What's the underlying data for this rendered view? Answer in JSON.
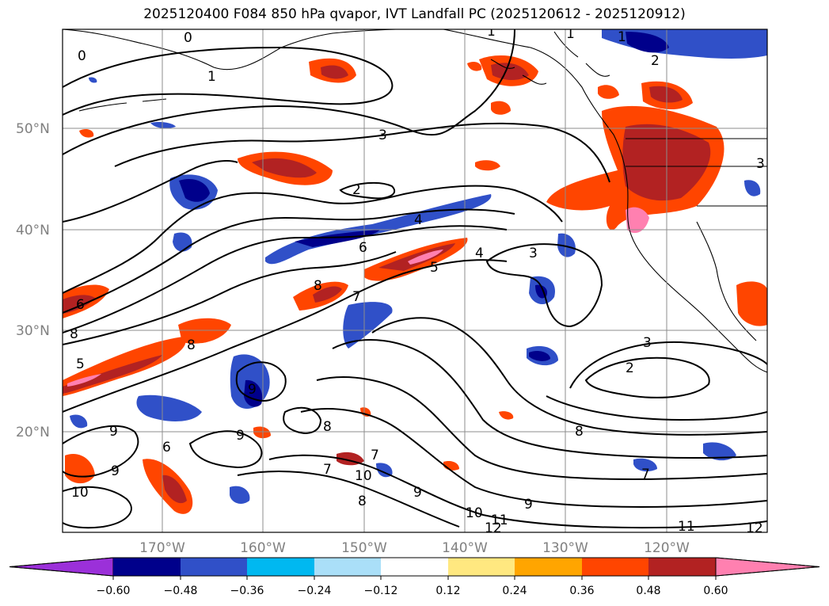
{
  "title": "2025120400 F084 850 hPa qvapor, IVT Landfall PC (2025120612 - 2025120912)",
  "lat_labels": [
    "50°N",
    "40°N",
    "30°N",
    "20°N"
  ],
  "lon_labels": [
    "170°W",
    "160°W",
    "150°W",
    "140°W",
    "130°W",
    "120°W"
  ],
  "contour_labels": [
    "0",
    "0",
    "1",
    "1",
    "1",
    "1",
    "2",
    "3",
    "2",
    "4",
    "6",
    "4",
    "3",
    "5",
    "8",
    "7",
    "8",
    "6",
    "8",
    "5",
    "3",
    "2",
    "8",
    "9",
    "9",
    "6",
    "9",
    "9",
    "10",
    "8",
    "7",
    "10",
    "8",
    "9",
    "7",
    "10",
    "11",
    "12",
    "9",
    "11",
    "12",
    "7",
    "3"
  ],
  "colorbar": {
    "colors": [
      "#9b30d9",
      "#00008b",
      "#3050c8",
      "#00b8f0",
      "#aadff8",
      "#ffffff",
      "#ffe880",
      "#ffa500",
      "#ff4500",
      "#b22222",
      "#ff80b0"
    ],
    "ticks": [
      "−0.60",
      "−0.48",
      "−0.36",
      "−0.24",
      "−0.12",
      "0.12",
      "0.24",
      "0.36",
      "0.48",
      "0.60"
    ]
  }
}
